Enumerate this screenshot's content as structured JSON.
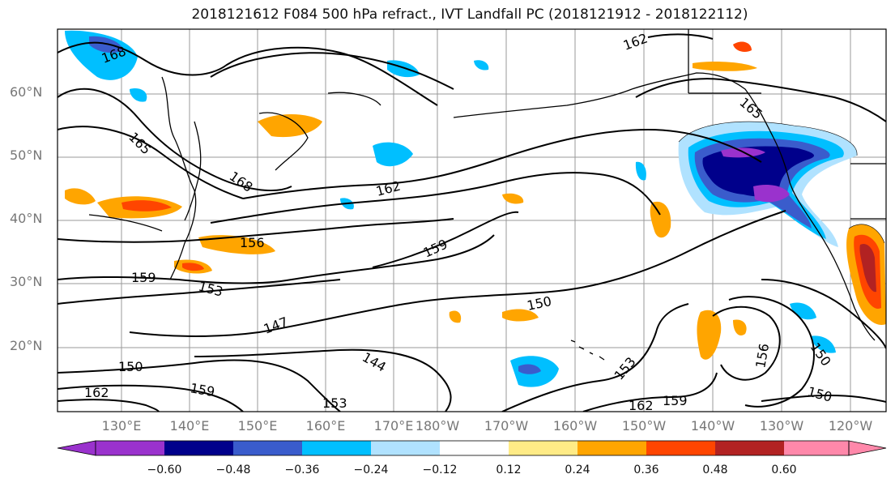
{
  "title": "2018121612 F084 500 hPa refract., IVT Landfall PC (2018121912 - 2018122112)",
  "lat_labels": [
    "60°N",
    "50°N",
    "40°N",
    "30°N",
    "20°N"
  ],
  "lon_labels": [
    "130°E",
    "140°E",
    "150°E",
    "160°E",
    "170°E",
    "180°W",
    "170°W",
    "160°W",
    "150°W",
    "140°W",
    "130°W",
    "120°W"
  ],
  "colorbar": {
    "ticks": [
      "−0.60",
      "−0.48",
      "−0.36",
      "−0.24",
      "−0.12",
      "0.12",
      "0.24",
      "0.36",
      "0.48",
      "0.60"
    ],
    "colors": [
      "#9a32cd",
      "#00008b",
      "#3a5ccc",
      "#00bfff",
      "#b0e2ff",
      "#ffffff",
      "#ffeb86",
      "#ffa500",
      "#ff4500",
      "#b22222",
      "#ff88aa",
      "#ff88aa"
    ]
  },
  "contour_labels": [
    "168",
    "165",
    "168",
    "162",
    "162",
    "165",
    "156",
    "159",
    "159",
    "153",
    "147",
    "150",
    "144",
    "150",
    "159",
    "162",
    "153",
    "153",
    "159",
    "162",
    "156",
    "150",
    "150"
  ]
}
